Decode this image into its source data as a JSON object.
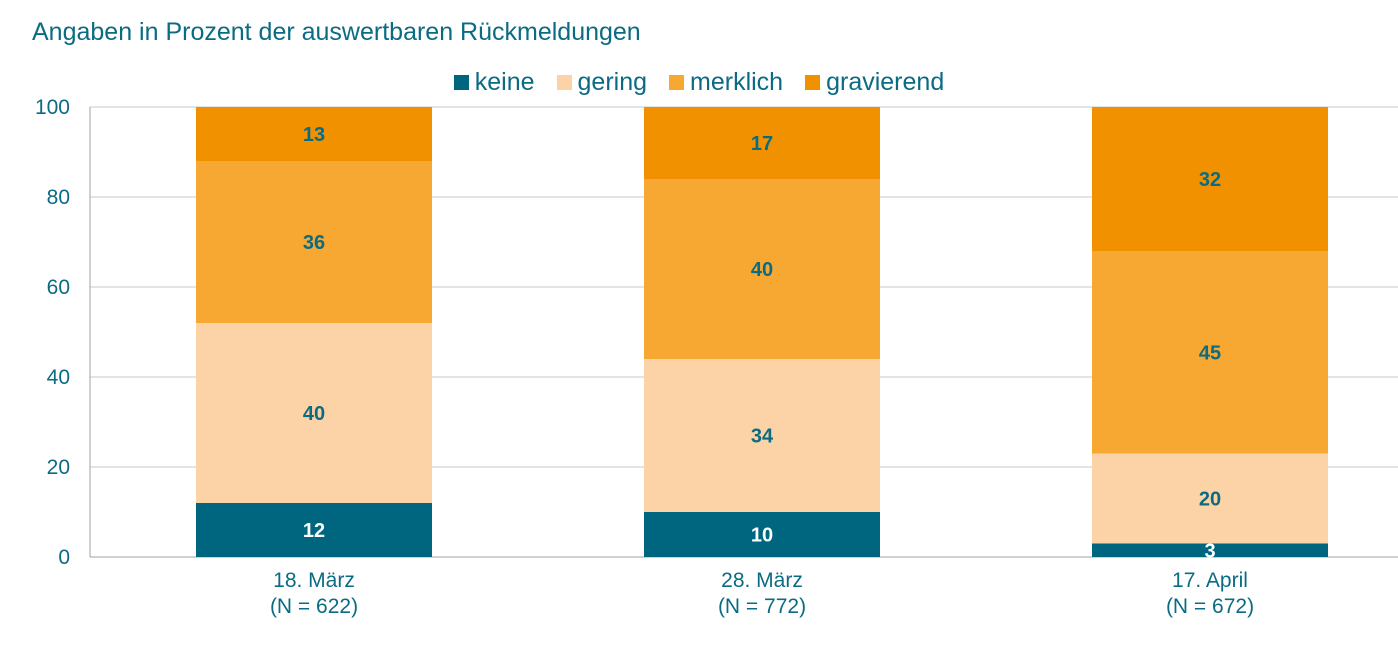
{
  "chart_data": {
    "type": "bar",
    "stacked": true,
    "title": "Angaben in Prozent der auswertbaren Rückmeldungen",
    "categories": [
      [
        "18. März",
        "(N = 622)"
      ],
      [
        "28. März",
        "(N = 772)"
      ],
      [
        "17. April",
        "(N = 672)"
      ]
    ],
    "series": [
      {
        "name": "keine",
        "color": "#006680",
        "label_color": "#ffffff",
        "values": [
          12,
          10,
          3
        ]
      },
      {
        "name": "gering",
        "color": "#fcd3a6",
        "label_color": "#0b6b83",
        "values": [
          40,
          34,
          20
        ]
      },
      {
        "name": "merklich",
        "color": "#f7a833",
        "label_color": "#0b6b83",
        "values": [
          36,
          40,
          45
        ]
      },
      {
        "name": "gravierend",
        "color": "#f29100",
        "label_color": "#0b6b83",
        "values": [
          13,
          17,
          32
        ]
      }
    ],
    "ylim": [
      0,
      100
    ],
    "yticks": [
      0,
      20,
      40,
      60,
      80,
      100
    ],
    "grid": true,
    "legend_position": "top"
  }
}
